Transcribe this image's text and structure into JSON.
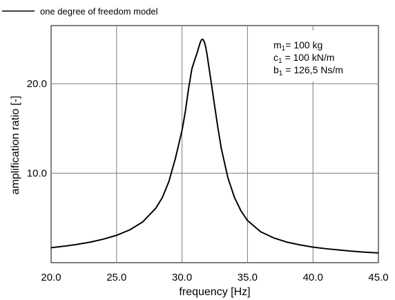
{
  "chart_data": {
    "type": "line",
    "title": "",
    "xlabel": "frequency [Hz]",
    "ylabel": "amplification ratio [-]",
    "xlim": [
      20.0,
      45.0
    ],
    "ylim": [
      0,
      26.5
    ],
    "xticks": [
      "20.0",
      "25.0",
      "30.0",
      "35.0",
      "40.0",
      "45.0"
    ],
    "xtick_values": [
      20,
      25,
      30,
      35,
      40,
      45
    ],
    "yticks": [
      "10.0",
      "20.0"
    ],
    "ytick_values": [
      10,
      20
    ],
    "grid": true,
    "legend_position": "top-left",
    "annotation": {
      "m_main": "m",
      "m_sub": "1",
      "m_rest": "= 100 kg",
      "c_main": "c",
      "c_sub": "1",
      "c_rest": " = 100 kN/m",
      "b_main": "b",
      "b_sub": "1",
      "b_rest": " = 126,5 Ns/m"
    },
    "series": [
      {
        "name": "one degree of freedom model",
        "color": "#000000",
        "x": [
          20.0,
          21.0,
          22.0,
          23.0,
          24.0,
          25.0,
          26.0,
          27.0,
          28.0,
          28.5,
          29.0,
          29.5,
          30.0,
          30.25,
          30.5,
          30.75,
          31.0,
          31.1,
          31.2,
          31.3,
          31.4,
          31.5,
          31.6,
          31.7,
          31.8,
          31.9,
          32.0,
          32.25,
          32.5,
          32.75,
          33.0,
          33.5,
          34.0,
          34.5,
          35.0,
          36.0,
          37.0,
          38.0,
          39.0,
          40.0,
          41.0,
          42.0,
          43.0,
          44.0,
          45.0
        ],
        "y": [
          1.67,
          1.84,
          2.05,
          2.3,
          2.63,
          3.06,
          3.66,
          4.56,
          6.09,
          7.29,
          9.09,
          11.69,
          14.79,
          16.86,
          19.45,
          21.66,
          22.8,
          23.21,
          23.68,
          24.2,
          24.64,
          24.94,
          24.96,
          24.69,
          24.15,
          23.36,
          22.39,
          19.93,
          17.42,
          14.98,
          12.76,
          9.51,
          7.31,
          5.79,
          4.71,
          3.46,
          2.77,
          2.3,
          1.99,
          1.74,
          1.56,
          1.42,
          1.28,
          1.17,
          1.09
        ]
      }
    ]
  }
}
